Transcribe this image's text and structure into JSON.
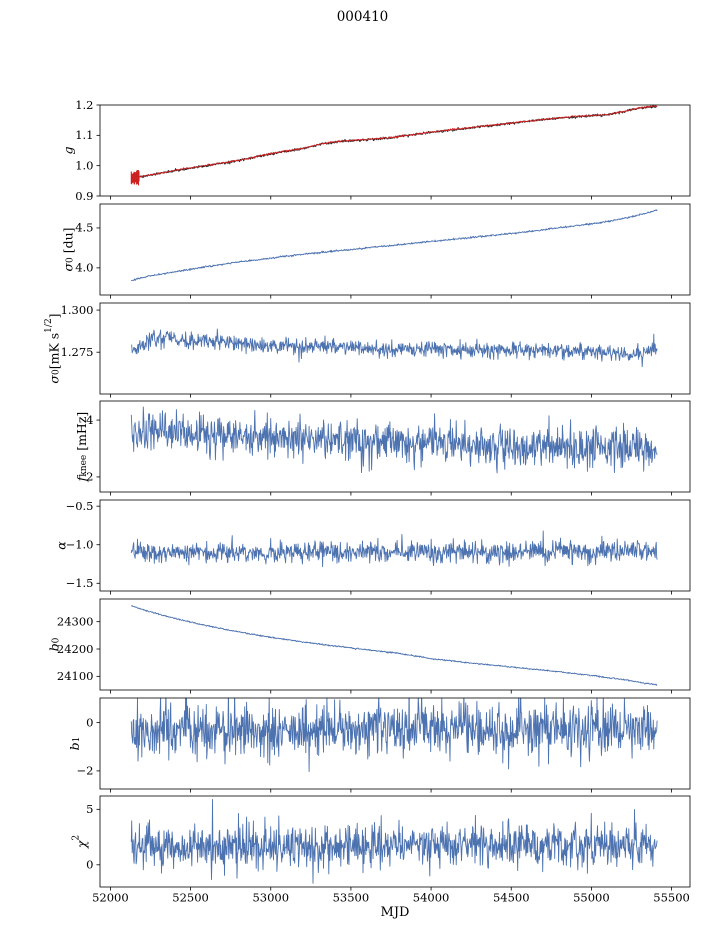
{
  "chart_data": {
    "type": "line",
    "title": "000410",
    "xlabel": "MJD",
    "grid": false,
    "legend": "none",
    "xlim": [
      51935,
      55615
    ],
    "xticks": [
      52000,
      52500,
      53000,
      53500,
      54000,
      54500,
      55000,
      55500
    ],
    "xtick_labels": [
      "52000",
      "52500",
      "53000",
      "53500",
      "54000",
      "54500",
      "55000",
      "55500"
    ],
    "x_data_range": [
      52130,
      55410
    ],
    "n_points": 1095,
    "axis_color": "#000000",
    "line_blue": "#4c72b0",
    "line_red": "#cc2222",
    "line_black": "#1a1a1a",
    "panels": [
      {
        "name": "g",
        "ylabel_runs": [
          {
            "t": "g",
            "it": true
          }
        ],
        "ylim": [
          0.9,
          1.2
        ],
        "yticks": [
          0.9,
          1.0,
          1.1,
          1.2
        ],
        "ytick_labels": [
          "0.9",
          "1.0",
          "1.1",
          "1.2"
        ],
        "series": [
          {
            "name": "g-measured",
            "color": "#1a1a1a",
            "noise_sd": 0.002,
            "seed": 101,
            "trend": [
              [
                52130,
                0.957
              ],
              [
                52200,
                0.964
              ],
              [
                52300,
                0.974
              ],
              [
                52450,
                0.988
              ],
              [
                52600,
                1.0
              ],
              [
                52750,
                1.012
              ],
              [
                52900,
                1.028
              ],
              [
                53050,
                1.044
              ],
              [
                53200,
                1.056
              ],
              [
                53320,
                1.072
              ],
              [
                53450,
                1.081
              ],
              [
                53600,
                1.086
              ],
              [
                53750,
                1.092
              ],
              [
                53900,
                1.103
              ],
              [
                54050,
                1.113
              ],
              [
                54200,
                1.122
              ],
              [
                54350,
                1.131
              ],
              [
                54500,
                1.14
              ],
              [
                54650,
                1.149
              ],
              [
                54800,
                1.157
              ],
              [
                54950,
                1.163
              ],
              [
                55100,
                1.168
              ],
              [
                55200,
                1.178
              ],
              [
                55300,
                1.19
              ],
              [
                55410,
                1.196
              ]
            ]
          },
          {
            "name": "g-model-fit",
            "color": "#cc2222",
            "noise_sd": 0.0013,
            "seed": 202,
            "offset": 0.0008,
            "errorbars": {
              "x_max": 52180,
              "e_min": 0.012,
              "e_max": 0.028
            },
            "trend": [
              [
                52130,
                0.957
              ],
              [
                52200,
                0.964
              ],
              [
                52300,
                0.974
              ],
              [
                52450,
                0.988
              ],
              [
                52600,
                1.0
              ],
              [
                52750,
                1.012
              ],
              [
                52900,
                1.028
              ],
              [
                53050,
                1.044
              ],
              [
                53200,
                1.056
              ],
              [
                53320,
                1.072
              ],
              [
                53450,
                1.081
              ],
              [
                53600,
                1.086
              ],
              [
                53750,
                1.092
              ],
              [
                53900,
                1.103
              ],
              [
                54050,
                1.113
              ],
              [
                54200,
                1.122
              ],
              [
                54350,
                1.131
              ],
              [
                54500,
                1.14
              ],
              [
                54650,
                1.149
              ],
              [
                54800,
                1.157
              ],
              [
                54950,
                1.163
              ],
              [
                55100,
                1.168
              ],
              [
                55200,
                1.178
              ],
              [
                55300,
                1.19
              ],
              [
                55410,
                1.196
              ]
            ]
          }
        ]
      },
      {
        "name": "sigma0_du",
        "ylabel_runs": [
          {
            "t": "σ",
            "it": true
          },
          {
            "t": "0",
            "sub": true
          },
          {
            "t": " [du]"
          }
        ],
        "ylim": [
          3.66,
          4.8
        ],
        "yticks": [
          4.0,
          4.5
        ],
        "ytick_labels": [
          "4.0",
          "4.5"
        ],
        "series": [
          {
            "name": "sigma0-du",
            "color": "#4c72b0",
            "noise_sd": 0.005,
            "seed": 303,
            "trend": [
              [
                52130,
                3.845
              ],
              [
                52250,
                3.9
              ],
              [
                52400,
                3.95
              ],
              [
                52550,
                4.0
              ],
              [
                52750,
                4.06
              ],
              [
                52950,
                4.11
              ],
              [
                53150,
                4.16
              ],
              [
                53350,
                4.2
              ],
              [
                53550,
                4.24
              ],
              [
                53750,
                4.28
              ],
              [
                53950,
                4.32
              ],
              [
                54150,
                4.36
              ],
              [
                54350,
                4.4
              ],
              [
                54550,
                4.44
              ],
              [
                54750,
                4.49
              ],
              [
                54950,
                4.54
              ],
              [
                55100,
                4.58
              ],
              [
                55250,
                4.64
              ],
              [
                55350,
                4.69
              ],
              [
                55410,
                4.73
              ]
            ]
          }
        ]
      },
      {
        "name": "sigma0_mks",
        "ylabel_runs": [
          {
            "t": "σ",
            "it": true
          },
          {
            "t": "0",
            "sub": true
          },
          {
            "t": "[mK s"
          },
          {
            "t": "1/2",
            "sup": true
          },
          {
            "t": "]"
          }
        ],
        "ylim": [
          1.2502,
          1.3042
        ],
        "yticks": [
          1.275,
          1.3
        ],
        "ytick_labels": [
          "1.275",
          "1.300"
        ],
        "series": [
          {
            "name": "sigma0-mks",
            "color": "#4c72b0",
            "noise_sd": 0.0024,
            "seed": 404,
            "trend": [
              [
                52130,
                1.2765
              ],
              [
                52200,
                1.279
              ],
              [
                52280,
                1.283
              ],
              [
                52350,
                1.2845
              ],
              [
                52420,
                1.2825
              ],
              [
                52500,
                1.281
              ],
              [
                52600,
                1.282
              ],
              [
                52700,
                1.2815
              ],
              [
                52800,
                1.28
              ],
              [
                52900,
                1.279
              ],
              [
                53000,
                1.2785
              ],
              [
                53100,
                1.279
              ],
              [
                53200,
                1.278
              ],
              [
                53300,
                1.279
              ],
              [
                53400,
                1.2785
              ],
              [
                53500,
                1.278
              ],
              [
                53600,
                1.277
              ],
              [
                53700,
                1.2765
              ],
              [
                53800,
                1.277
              ],
              [
                53900,
                1.2775
              ],
              [
                54000,
                1.277
              ],
              [
                54200,
                1.2765
              ],
              [
                54400,
                1.276
              ],
              [
                54600,
                1.2765
              ],
              [
                54800,
                1.276
              ],
              [
                55000,
                1.2755
              ],
              [
                55150,
                1.2745
              ],
              [
                55250,
                1.273
              ],
              [
                55350,
                1.275
              ],
              [
                55410,
                1.276
              ]
            ]
          }
        ]
      },
      {
        "name": "f_knee",
        "ylabel_runs": [
          {
            "t": "f",
            "it": true
          },
          {
            "t": "knee",
            "sub": true
          },
          {
            "t": " [mHz]"
          }
        ],
        "ylim": [
          1.47,
          4.67
        ],
        "yticks": [
          2,
          4
        ],
        "ytick_labels": [
          "2",
          "4"
        ],
        "series": [
          {
            "name": "f-knee",
            "color": "#4c72b0",
            "noise_sd": 0.36,
            "seed": 505,
            "trend": [
              [
                52130,
                3.55
              ],
              [
                52300,
                3.6
              ],
              [
                52500,
                3.5
              ],
              [
                52800,
                3.45
              ],
              [
                53100,
                3.35
              ],
              [
                53400,
                3.3
              ],
              [
                53700,
                3.25
              ],
              [
                54000,
                3.15
              ],
              [
                54300,
                3.1
              ],
              [
                54600,
                3.05
              ],
              [
                54900,
                3.0
              ],
              [
                55200,
                3.0
              ],
              [
                55410,
                2.95
              ]
            ]
          }
        ]
      },
      {
        "name": "alpha",
        "ylabel_runs": [
          {
            "t": "α",
            "it": true
          }
        ],
        "ylim": [
          -1.6,
          -0.42
        ],
        "yticks": [
          -1.5,
          -1.0,
          -0.5
        ],
        "ytick_labels": [
          "−1.5",
          "−1.0",
          "−0.5"
        ],
        "series": [
          {
            "name": "alpha",
            "color": "#4c72b0",
            "noise_sd": 0.068,
            "seed": 606,
            "trend": [
              [
                52130,
                -1.1
              ],
              [
                53000,
                -1.1
              ],
              [
                54000,
                -1.09
              ],
              [
                55410,
                -1.08
              ]
            ]
          }
        ]
      },
      {
        "name": "b0",
        "ylabel_runs": [
          {
            "t": "b",
            "it": true
          },
          {
            "t": "0",
            "sub": true
          }
        ],
        "ylim": [
          24050,
          24383
        ],
        "yticks": [
          24100,
          24200,
          24300
        ],
        "ytick_labels": [
          "24100",
          "24200",
          "24300"
        ],
        "series": [
          {
            "name": "b0",
            "color": "#4c72b0",
            "noise_sd": 1.2,
            "seed": 707,
            "trend": [
              [
                52130,
                24358
              ],
              [
                52250,
                24336
              ],
              [
                52400,
                24312
              ],
              [
                52550,
                24292
              ],
              [
                52700,
                24274
              ],
              [
                52850,
                24258
              ],
              [
                53000,
                24243
              ],
              [
                53200,
                24226
              ],
              [
                53400,
                24211
              ],
              [
                53600,
                24197
              ],
              [
                53800,
                24184
              ],
              [
                54000,
                24165
              ],
              [
                54200,
                24152
              ],
              [
                54400,
                24140
              ],
              [
                54600,
                24128
              ],
              [
                54800,
                24117
              ],
              [
                55000,
                24103
              ],
              [
                55200,
                24088
              ],
              [
                55410,
                24068
              ]
            ]
          }
        ]
      },
      {
        "name": "b1",
        "ylabel_runs": [
          {
            "t": "b",
            "it": true
          },
          {
            "t": "1",
            "sub": true
          }
        ],
        "ylim": [
          -2.75,
          1.02
        ],
        "yticks": [
          -2,
          0
        ],
        "ytick_labels": [
          "−2",
          "0"
        ],
        "series": [
          {
            "name": "b1",
            "color": "#4c72b0",
            "noise_sd": 0.55,
            "seed": 808,
            "trend": [
              [
                52130,
                -0.3
              ],
              [
                55410,
                -0.25
              ]
            ]
          }
        ]
      },
      {
        "name": "chi2",
        "ylabel_runs": [
          {
            "t": "χ",
            "it": true
          },
          {
            "t": "2",
            "sup": true
          }
        ],
        "ylim": [
          -2.0,
          6.2
        ],
        "yticks": [
          0,
          5
        ],
        "ytick_labels": [
          "0",
          "5"
        ],
        "series": [
          {
            "name": "chi2",
            "color": "#4c72b0",
            "noise_sd": 1.0,
            "seed": 909,
            "trend": [
              [
                52130,
                1.6
              ],
              [
                55410,
                1.9
              ]
            ]
          }
        ]
      }
    ]
  }
}
